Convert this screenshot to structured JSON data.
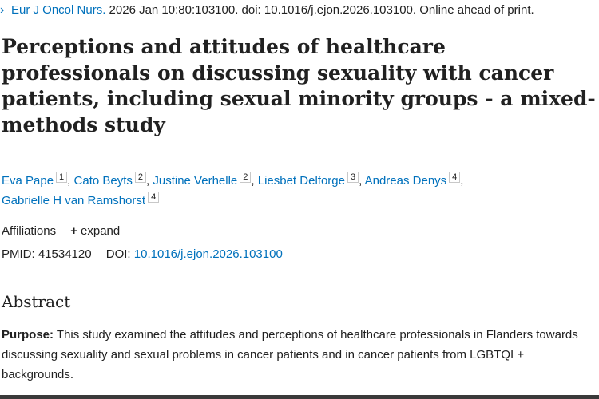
{
  "citation": {
    "journal": "Eur J Oncol Nurs.",
    "details": "2026 Jan 10:80:103100. doi: 10.1016/j.ejon.2026.103100. Online ahead of print."
  },
  "title": "Perceptions and attitudes of healthcare professionals on discussing sexuality with cancer patients, including sexual minority groups - a mixed-methods study",
  "authors": [
    {
      "name": "Eva Pape",
      "aff": "1"
    },
    {
      "name": "Cato Beyts",
      "aff": "2"
    },
    {
      "name": "Justine Verhelle",
      "aff": "2"
    },
    {
      "name": "Liesbet Delforge",
      "aff": "3"
    },
    {
      "name": "Andreas Denys",
      "aff": "4"
    },
    {
      "name": "Gabrielle H van Ramshorst",
      "aff": "4"
    }
  ],
  "affiliations": {
    "label": "Affiliations",
    "toggle": "expand"
  },
  "identifiers": {
    "pmid_label": "PMID:",
    "pmid": "41534120",
    "doi_label": "DOI:",
    "doi": "10.1016/j.ejon.2026.103100"
  },
  "abstract": {
    "heading": "Abstract",
    "purpose_label": "Purpose:",
    "purpose_text": " This study examined the attitudes and perceptions of healthcare professionals in Flanders towards discussing sexuality and sexual problems in cancer patients and in cancer patients from LGBTQI + backgrounds."
  },
  "colors": {
    "link": "#0071bc",
    "text": "#212121"
  },
  "icons": {
    "citation_toggle": "chevron-right-icon",
    "expand_toggle": "plus-icon"
  }
}
